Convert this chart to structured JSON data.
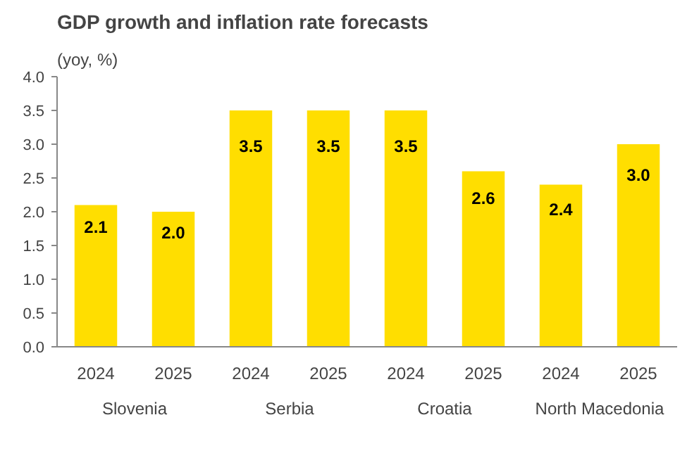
{
  "chart_data": {
    "type": "bar",
    "title": "GDP growth and inflation rate forecasts",
    "subtitle": "(yoy, %)",
    "categories": [
      "2024",
      "2025",
      "2024",
      "2025",
      "2024",
      "2025",
      "2024",
      "2025"
    ],
    "values": [
      2.1,
      2.0,
      3.5,
      3.5,
      3.5,
      2.6,
      2.4,
      3.0
    ],
    "value_labels": [
      "2.1",
      "2.0",
      "3.5",
      "3.5",
      "3.5",
      "2.6",
      "2.4",
      "3.0"
    ],
    "color": "#ffde00",
    "annotations": [
      "Slovenia",
      "Serbia",
      "Croatia",
      "North Macedonia"
    ],
    "ylim": [
      0,
      4
    ],
    "yticks": [
      {
        "value": 0,
        "label": "0.0"
      },
      {
        "value": 0.5,
        "label": "0.5"
      },
      {
        "value": 1,
        "label": "1.0"
      },
      {
        "value": 1.5,
        "label": "1.5"
      },
      {
        "value": 2,
        "label": "2.0"
      },
      {
        "value": 2.5,
        "label": "2.5"
      },
      {
        "value": 3,
        "label": "3.0"
      },
      {
        "value": 3.5,
        "label": "3.5"
      },
      {
        "value": 4,
        "label": "4.0"
      }
    ],
    "grid": false
  }
}
